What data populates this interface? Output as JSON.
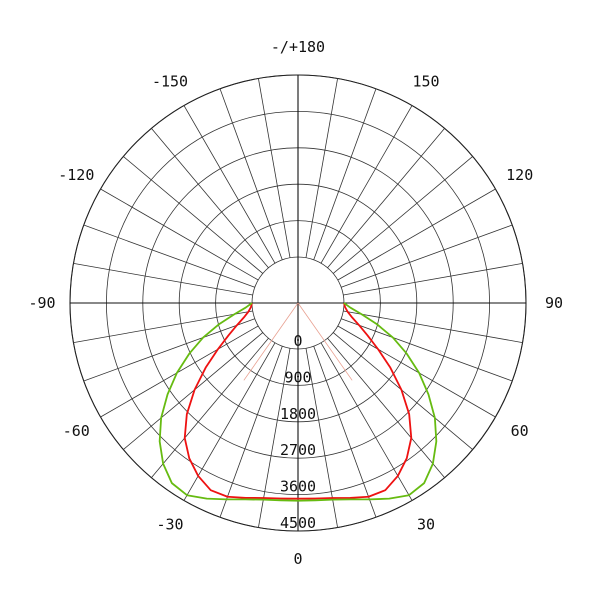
{
  "chart_data": {
    "type": "polar-line",
    "title": "",
    "angle_labels": [
      {
        "angle": 0,
        "text": "0"
      },
      {
        "angle": 30,
        "text": "30"
      },
      {
        "angle": 60,
        "text": "60"
      },
      {
        "angle": 90,
        "text": "90"
      },
      {
        "angle": 120,
        "text": "120"
      },
      {
        "angle": 150,
        "text": "150"
      },
      {
        "angle": 180,
        "text": "-/+180"
      },
      {
        "angle": -150,
        "text": "-150"
      },
      {
        "angle": -120,
        "text": "-120"
      },
      {
        "angle": -90,
        "text": "-90"
      },
      {
        "angle": -60,
        "text": "-60"
      },
      {
        "angle": -30,
        "text": "-30"
      }
    ],
    "radial_labels": [
      {
        "value": 0,
        "text": "0"
      },
      {
        "value": 900,
        "text": "900"
      },
      {
        "value": 1800,
        "text": "1800"
      },
      {
        "value": 2700,
        "text": "2700"
      },
      {
        "value": 3600,
        "text": "3600"
      },
      {
        "value": 4500,
        "text": "4500"
      }
    ],
    "rmax": 4500,
    "angle_step": 10,
    "series": [
      {
        "color": "#ee1111",
        "points": [
          [
            0,
            3700
          ],
          [
            5,
            3715
          ],
          [
            10,
            3760
          ],
          [
            15,
            3850
          ],
          [
            20,
            3960
          ],
          [
            25,
            3970
          ],
          [
            30,
            3800
          ],
          [
            35,
            3550
          ],
          [
            40,
            3220
          ],
          [
            45,
            2750
          ],
          [
            50,
            2200
          ],
          [
            55,
            1650
          ],
          [
            60,
            1150
          ],
          [
            65,
            760
          ],
          [
            70,
            470
          ],
          [
            75,
            250
          ],
          [
            80,
            110
          ],
          [
            85,
            30
          ],
          [
            90,
            0
          ]
        ]
      },
      {
        "color": "#66bb11",
        "points": [
          [
            0,
            3750
          ],
          [
            5,
            3760
          ],
          [
            10,
            3800
          ],
          [
            15,
            3890
          ],
          [
            20,
            4030
          ],
          [
            25,
            4200
          ],
          [
            30,
            4350
          ],
          [
            35,
            4300
          ],
          [
            40,
            4050
          ],
          [
            45,
            3700
          ],
          [
            50,
            3280
          ],
          [
            55,
            2800
          ],
          [
            60,
            2320
          ],
          [
            65,
            1830
          ],
          [
            70,
            1360
          ],
          [
            75,
            880
          ],
          [
            80,
            460
          ],
          [
            85,
            160
          ],
          [
            90,
            0
          ]
        ]
      }
    ]
  }
}
